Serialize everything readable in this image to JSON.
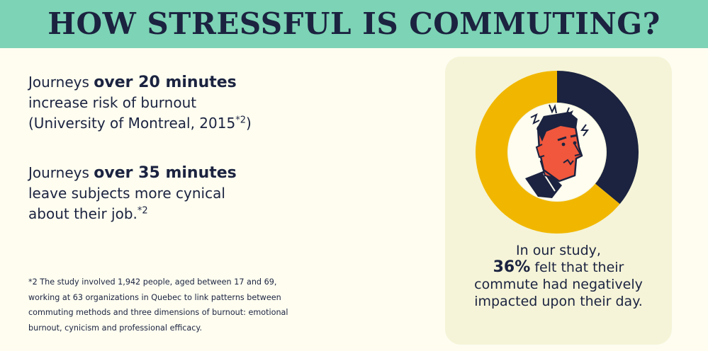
{
  "header": {
    "title": "HOW STRESSFUL IS COMMUTING?"
  },
  "facts": [
    {
      "prefix": "Journeys ",
      "highlight": "over 20 minutes",
      "line2": "increase risk of burnout",
      "line3": "(University of Montreal, 2015",
      "ref": "*2",
      "line3_end": ")"
    },
    {
      "prefix": "Journeys ",
      "highlight": "over 35 minutes",
      "line2": "leave subjects more cynical",
      "line3": "about their job.",
      "ref": "*2"
    }
  ],
  "footnote": {
    "lines": [
      "*2 The study involved 1,942 people, aged between 17 and 69,",
      "working at 63 organizations in Quebec to link patterns between",
      "commuting methods and three dimensions of burnout: emotional",
      "burnout, cynicism and professional efficacy."
    ]
  },
  "caption": {
    "line1": "In our study,",
    "pct": "36%",
    "line2_rest": " felt that their",
    "line3": "commute had negatively",
    "line4": "impacted upon their day."
  },
  "colors": {
    "banner": "#7dd3b5",
    "text": "#1b2340",
    "panel": "#f5f4d8",
    "stressed": "#1b2340",
    "not_stressed": "#f1b700",
    "face": "#f0573c"
  },
  "chart_data": {
    "type": "pie",
    "variant": "donut",
    "values": [
      36,
      64
    ],
    "colors": [
      "#1b2340",
      "#f1b700"
    ],
    "start": "top",
    "direction": "clockwise"
  }
}
